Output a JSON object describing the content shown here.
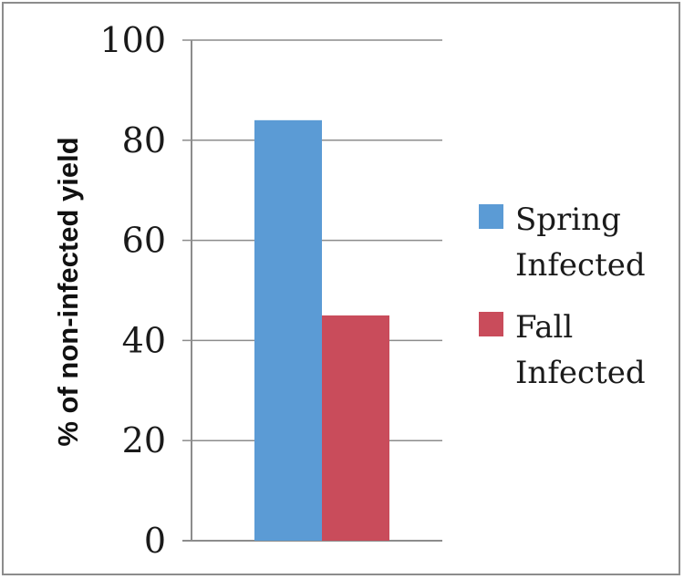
{
  "chart_data": {
    "type": "bar",
    "categories": [
      ""
    ],
    "series": [
      {
        "name": "Spring Infected",
        "name_lines": [
          "Spring",
          "Infected"
        ],
        "values": [
          84
        ],
        "color": "#5b9bd5"
      },
      {
        "name": "Fall Infected",
        "name_lines": [
          "Fall",
          "Infected"
        ],
        "values": [
          45
        ],
        "color": "#c94c5b"
      }
    ],
    "title": "",
    "xlabel": "",
    "ylabel": "% of non-infected yield",
    "ylim": [
      0,
      100
    ],
    "yticks": [
      0,
      20,
      40,
      60,
      80,
      100
    ],
    "grid": true,
    "legend_position": "right"
  }
}
